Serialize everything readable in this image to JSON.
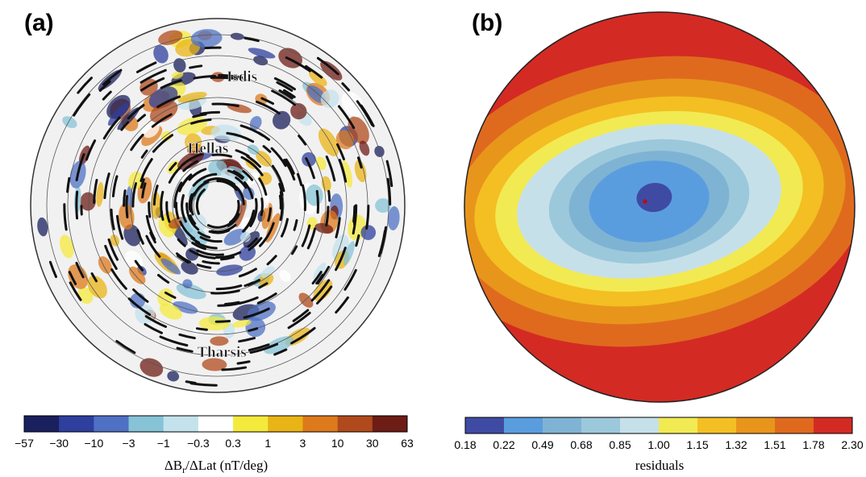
{
  "panels": [
    {
      "label": "(a)",
      "places": [
        "Isdis",
        "Hellas",
        "Tharsis"
      ],
      "colorbar": {
        "ticks": [
          "−57",
          "−30",
          "−10",
          "−3",
          "−1",
          "−0.3",
          "0.3",
          "1",
          "3",
          "10",
          "30",
          "63"
        ],
        "colors": [
          "#1a1f5e",
          "#2e3f9e",
          "#4f71c4",
          "#86c3d6",
          "#c4e2ec",
          "#ffffff",
          "#f4ea3c",
          "#e9b416",
          "#dd7a1c",
          "#b04a1c",
          "#6e1c16"
        ],
        "label": {
          "main": "ΔB",
          "sub": "r",
          "rest": "/ΔLat (nT/deg)"
        }
      }
    },
    {
      "label": "(b)",
      "colorbar": {
        "ticks": [
          "0.18",
          "0.22",
          "0.49",
          "0.68",
          "0.85",
          "1.00",
          "1.15",
          "1.32",
          "1.51",
          "1.78",
          "2.30"
        ],
        "colors": [
          "#3f4ba3",
          "#5a9ddf",
          "#7fb3d3",
          "#9cc8db",
          "#c6e0ea",
          "#f2ea52",
          "#f3bf22",
          "#e8951c",
          "#df6a1e",
          "#d42a24"
        ],
        "label": "residuals"
      }
    }
  ]
}
